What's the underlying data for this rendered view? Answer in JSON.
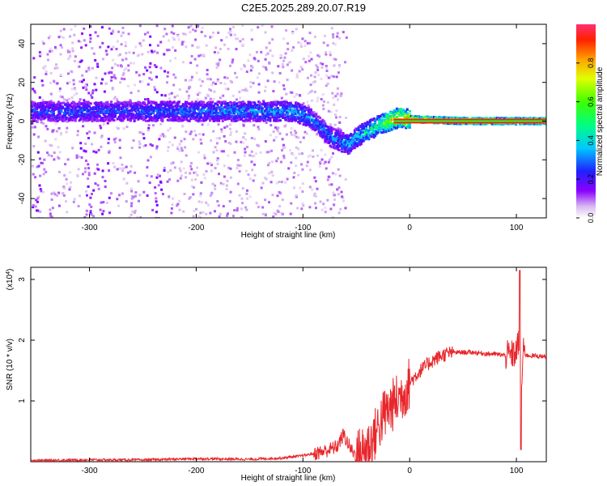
{
  "title": "C2E5.2025.289.20.07.R19",
  "chart_data": [
    {
      "type": "heatmap",
      "xlabel": "Height of straight line (km)",
      "ylabel": "Frequency (Hz)",
      "xlim": [
        -355,
        128
      ],
      "ylim": [
        -50,
        50
      ],
      "xticks": [
        -300,
        -200,
        -100,
        0,
        100
      ],
      "yticks": [
        -40,
        -20,
        0,
        20,
        40
      ],
      "colorbar": {
        "label": "Normalized spectral amplitude",
        "range": [
          0,
          1
        ],
        "ticks": [
          0.0,
          0.2,
          0.4,
          0.6,
          0.8
        ],
        "tick_labels": [
          "0.0",
          "0.2",
          "0.4",
          "0.6",
          "0.8"
        ]
      },
      "ridge": {
        "description_points_x": [
          -355,
          -300,
          -250,
          -200,
          -150,
          -110,
          -95,
          -85,
          -75,
          -65,
          -58,
          -50,
          -40,
          -30,
          -20,
          -10,
          0,
          50,
          100,
          128
        ],
        "description_points_y": [
          5,
          5,
          5,
          5,
          5,
          5,
          2,
          -3,
          -8,
          -11,
          -12,
          -8,
          -5,
          -2,
          0,
          2,
          1,
          0,
          0,
          0
        ],
        "description_points_amp": [
          0.3,
          0.32,
          0.32,
          0.35,
          0.38,
          0.4,
          0.38,
          0.35,
          0.35,
          0.38,
          0.4,
          0.45,
          0.5,
          0.6,
          0.8,
          0.85,
          0.9,
          0.9,
          0.9,
          0.9
        ]
      }
    },
    {
      "type": "line",
      "xlabel": "Height of straight line (km)",
      "ylabel": "SNR (10 * v/v)",
      "scale_label": "(x10",
      "scale_exp": "4",
      "scale_close": ")",
      "xlim": [
        -355,
        128
      ],
      "ylim": [
        0,
        3.2
      ],
      "xticks": [
        -300,
        -200,
        -100,
        0,
        100
      ],
      "yticks": [
        1,
        2,
        3
      ],
      "series": [
        {
          "color": "#e8262b",
          "x": [
            -355,
            -300,
            -250,
            -200,
            -150,
            -120,
            -100,
            -85,
            -75,
            -68,
            -62,
            -55,
            -50,
            -45,
            -40,
            -35,
            -30,
            -25,
            -20,
            -15,
            -10,
            -5,
            0,
            10,
            20,
            30,
            40,
            50,
            60,
            70,
            80,
            90,
            95,
            100,
            102,
            104,
            106,
            110,
            128
          ],
          "y": [
            0.02,
            0.03,
            0.03,
            0.05,
            0.04,
            0.06,
            0.1,
            0.15,
            0.2,
            0.25,
            0.45,
            0.2,
            0.1,
            0.15,
            0.25,
            0.35,
            0.55,
            0.75,
            0.85,
            0.95,
            1.05,
            1.15,
            1.3,
            1.5,
            1.65,
            1.75,
            1.8,
            1.8,
            1.8,
            1.78,
            1.77,
            1.75,
            1.75,
            1.8,
            2.0,
            0.5,
            1.8,
            1.75,
            1.73
          ]
        }
      ]
    }
  ],
  "colors": {
    "line": "#e8262b",
    "axis": "#000000"
  }
}
